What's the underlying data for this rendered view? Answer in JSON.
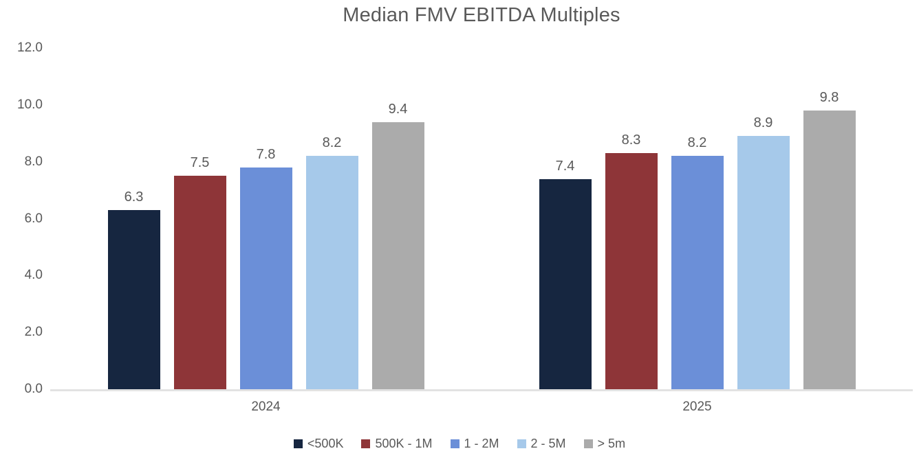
{
  "colors": {
    "text": "#595959",
    "axis_line": "#E2E2E2",
    "background": "#FFFFFF"
  },
  "chart_data": {
    "type": "bar",
    "title": "Median FMV EBITDA Multiples",
    "categories": [
      "2024",
      "2025"
    ],
    "series": [
      {
        "name": "<500K",
        "color": "#162640",
        "values": [
          6.3,
          7.4
        ]
      },
      {
        "name": "500K - 1M",
        "color": "#8E3538",
        "values": [
          7.5,
          8.3
        ]
      },
      {
        "name": "1 - 2M",
        "color": "#6B8FD8",
        "values": [
          7.8,
          8.2
        ]
      },
      {
        "name": "2 - 5M",
        "color": "#A6C9EA",
        "values": [
          8.2,
          8.9
        ]
      },
      {
        "name": "> 5m",
        "color": "#ABABAB",
        "values": [
          9.4,
          9.8
        ]
      }
    ],
    "xlabel": "",
    "ylabel": "",
    "ylim": [
      0,
      12
    ],
    "yticks": [
      0,
      2,
      4,
      6,
      8,
      10,
      12
    ],
    "ytick_labels": [
      "0.0",
      "2.0",
      "4.0",
      "6.0",
      "8.0",
      "10.0",
      "12.0"
    ],
    "value_labels": true,
    "grid": false,
    "legend_position": "bottom"
  }
}
